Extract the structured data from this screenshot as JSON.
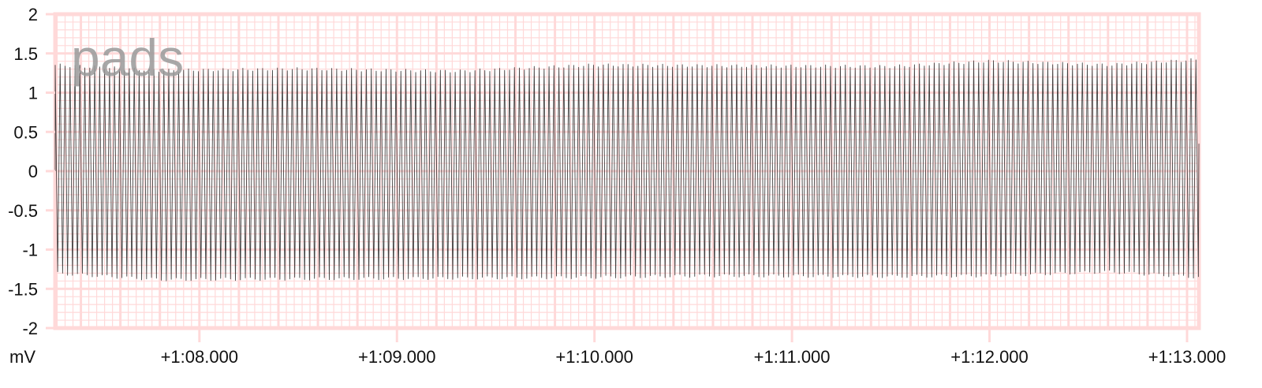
{
  "chart_data": {
    "type": "line",
    "lead_label": "pads",
    "unit_label": "mV",
    "ylim": [
      -2,
      2
    ],
    "y_ticks": [
      {
        "value": 2,
        "label": "2"
      },
      {
        "value": 1.5,
        "label": "1.5"
      },
      {
        "value": 1,
        "label": "1"
      },
      {
        "value": 0.5,
        "label": "0.5"
      },
      {
        "value": 0,
        "label": "0"
      },
      {
        "value": -0.5,
        "label": "-0.5"
      },
      {
        "value": -1,
        "label": "-1"
      },
      {
        "value": -1.5,
        "label": "-1.5"
      },
      {
        "value": -2,
        "label": "-2"
      }
    ],
    "xlim": [
      67.27,
      73.06
    ],
    "x_ticks": [
      {
        "value": 68,
        "label": "+1:08.000"
      },
      {
        "value": 69,
        "label": "+1:09.000"
      },
      {
        "value": 70,
        "label": "+1:10.000"
      },
      {
        "value": 71,
        "label": "+1:11.000"
      },
      {
        "value": 72,
        "label": "+1:12.000"
      },
      {
        "value": 73,
        "label": "+1:13.000"
      }
    ],
    "grid": true,
    "grid_color": "#ffd9d9",
    "trace_color": "#222222",
    "series": [
      {
        "signal": "oscillation",
        "frequency_hz": 40,
        "envelope": [
          {
            "x": 67.27,
            "max": 1.35,
            "min": -1.3
          },
          {
            "x": 67.8,
            "max": 1.28,
            "min": -1.38
          },
          {
            "x": 68.5,
            "max": 1.3,
            "min": -1.37
          },
          {
            "x": 69.3,
            "max": 1.27,
            "min": -1.36
          },
          {
            "x": 70.0,
            "max": 1.35,
            "min": -1.35
          },
          {
            "x": 70.6,
            "max": 1.34,
            "min": -1.33
          },
          {
            "x": 71.5,
            "max": 1.33,
            "min": -1.34
          },
          {
            "x": 72.0,
            "max": 1.4,
            "min": -1.33
          },
          {
            "x": 72.6,
            "max": 1.35,
            "min": -1.28
          },
          {
            "x": 73.06,
            "max": 1.42,
            "min": -1.35
          }
        ]
      }
    ]
  }
}
